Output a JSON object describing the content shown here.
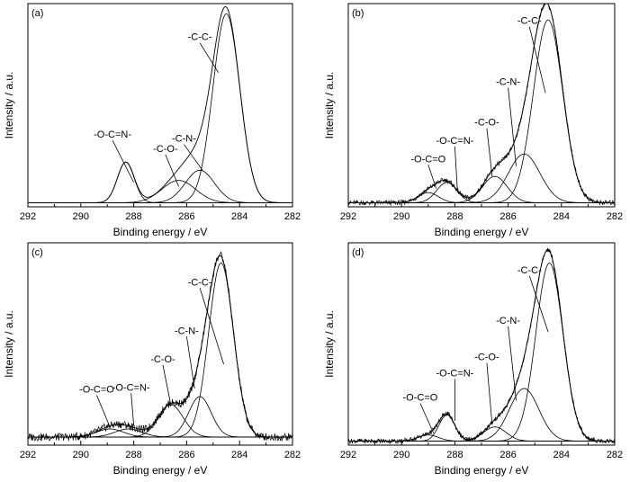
{
  "chart_data": [
    {
      "type": "line",
      "panel_label": "(a)",
      "xlabel": "Binding energy / eV",
      "ylabel": "Intensity / a.u.",
      "xlim": [
        292,
        282
      ],
      "x_ticks": [
        "292",
        "290",
        "288",
        "286",
        "284",
        "282"
      ],
      "baseline": 0.02,
      "envelope_noise": 0.0,
      "components": [
        {
          "name": "-C-C-",
          "center": 284.5,
          "height": 0.93,
          "fwhm": 1.2
        },
        {
          "name": "-C-N-",
          "center": 285.5,
          "height": 0.16,
          "fwhm": 1.3
        },
        {
          "name": "-C-O-",
          "center": 286.3,
          "height": 0.11,
          "fwhm": 1.5
        },
        {
          "name": "-O-C=N-",
          "center": 288.3,
          "height": 0.2,
          "fwhm": 0.75
        }
      ],
      "annotations": [
        {
          "text": "-C-C-",
          "x": 285.5,
          "y": 0.82,
          "tx": 284.8,
          "ty": 0.66
        },
        {
          "text": "-C-N-",
          "x": 286.1,
          "y": 0.32,
          "tx": 285.4,
          "ty": 0.18
        },
        {
          "text": "-C-O-",
          "x": 286.8,
          "y": 0.27,
          "tx": 286.3,
          "ty": 0.1
        },
        {
          "text": "-O-C=N-",
          "x": 288.8,
          "y": 0.34,
          "tx": 288.0,
          "ty": 0.12
        }
      ]
    },
    {
      "type": "line",
      "panel_label": "(b)",
      "xlabel": "Binding energy / eV",
      "ylabel": "Intensity / a.u.",
      "xlim": [
        292,
        282
      ],
      "x_ticks": [
        "292",
        "290",
        "288",
        "286",
        "284",
        "282"
      ],
      "baseline": 0.02,
      "envelope_noise": 0.012,
      "components": [
        {
          "name": "-C-C-",
          "center": 284.5,
          "height": 0.9,
          "fwhm": 1.3
        },
        {
          "name": "-C-N-",
          "center": 285.4,
          "height": 0.24,
          "fwhm": 1.4
        },
        {
          "name": "-C-O-",
          "center": 286.5,
          "height": 0.13,
          "fwhm": 1.1
        },
        {
          "name": "-O-C=N-",
          "center": 288.3,
          "height": 0.1,
          "fwhm": 0.9
        },
        {
          "name": "-O-C=O",
          "center": 289.0,
          "height": 0.05,
          "fwhm": 0.9
        }
      ],
      "annotations": [
        {
          "text": "-C-C-",
          "x": 285.2,
          "y": 0.9,
          "tx": 284.6,
          "ty": 0.56
        },
        {
          "text": "-C-N-",
          "x": 286.0,
          "y": 0.6,
          "tx": 285.7,
          "ty": 0.2
        },
        {
          "text": "-C-O-",
          "x": 286.8,
          "y": 0.4,
          "tx": 286.6,
          "ty": 0.15
        },
        {
          "text": "-O-C=N-",
          "x": 288.0,
          "y": 0.31,
          "tx": 287.9,
          "ty": 0.07
        },
        {
          "text": "-O-C=O",
          "x": 289.0,
          "y": 0.22,
          "tx": 288.7,
          "ty": 0.09
        }
      ]
    },
    {
      "type": "line",
      "panel_label": "(c)",
      "xlabel": "Binding energy / eV",
      "ylabel": "Intensity / a.u.",
      "xlim": [
        292,
        282
      ],
      "x_ticks": [
        "292",
        "290",
        "288",
        "286",
        "284",
        "282"
      ],
      "baseline": 0.04,
      "envelope_noise": 0.02,
      "components": [
        {
          "name": "-C-C-",
          "center": 284.7,
          "height": 0.86,
          "fwhm": 1.1
        },
        {
          "name": "-C-N-",
          "center": 285.5,
          "height": 0.2,
          "fwhm": 1.0
        },
        {
          "name": "-C-O-",
          "center": 286.6,
          "height": 0.16,
          "fwhm": 1.1
        },
        {
          "name": "-O-C=N-",
          "center": 288.2,
          "height": 0.04,
          "fwhm": 1.2
        },
        {
          "name": "-O-C=O",
          "center": 288.9,
          "height": 0.04,
          "fwhm": 1.2
        }
      ],
      "annotations": [
        {
          "text": "-C-C-",
          "x": 285.5,
          "y": 0.79,
          "tx": 284.6,
          "ty": 0.4
        },
        {
          "text": "-C-N-",
          "x": 286.0,
          "y": 0.55,
          "tx": 285.7,
          "ty": 0.28
        },
        {
          "text": "-C-O-",
          "x": 286.9,
          "y": 0.41,
          "tx": 286.6,
          "ty": 0.2
        },
        {
          "text": "-O-C=N-",
          "x": 288.1,
          "y": 0.27,
          "tx": 288.0,
          "ty": 0.1
        },
        {
          "text": "-O-C=O",
          "x": 289.4,
          "y": 0.26,
          "tx": 288.9,
          "ty": 0.09
        }
      ]
    },
    {
      "type": "line",
      "panel_label": "(d)",
      "xlabel": "Binding energy / eV",
      "ylabel": "Intensity / a.u.",
      "xlim": [
        292,
        282
      ],
      "x_ticks": [
        "292",
        "290",
        "288",
        "286",
        "284",
        "282"
      ],
      "baseline": 0.02,
      "envelope_noise": 0.012,
      "components": [
        {
          "name": "-C-C-",
          "center": 284.45,
          "height": 0.88,
          "fwhm": 1.2
        },
        {
          "name": "-C-N-",
          "center": 285.4,
          "height": 0.26,
          "fwhm": 1.3
        },
        {
          "name": "-C-O-",
          "center": 286.5,
          "height": 0.07,
          "fwhm": 1.0
        },
        {
          "name": "-O-C=N-",
          "center": 288.3,
          "height": 0.13,
          "fwhm": 0.7
        },
        {
          "name": "-O-C=O",
          "center": 289.0,
          "height": 0.03,
          "fwhm": 0.9
        }
      ],
      "annotations": [
        {
          "text": "-C-C-",
          "x": 285.2,
          "y": 0.85,
          "tx": 284.5,
          "ty": 0.56
        },
        {
          "text": "-C-N-",
          "x": 286.0,
          "y": 0.6,
          "tx": 285.7,
          "ty": 0.22
        },
        {
          "text": "-C-O-",
          "x": 286.8,
          "y": 0.42,
          "tx": 286.6,
          "ty": 0.1
        },
        {
          "text": "-O-C=N-",
          "x": 288.0,
          "y": 0.34,
          "tx": 288.0,
          "ty": 0.12
        },
        {
          "text": "-O-C=O",
          "x": 289.3,
          "y": 0.22,
          "tx": 288.8,
          "ty": 0.06
        }
      ]
    }
  ]
}
